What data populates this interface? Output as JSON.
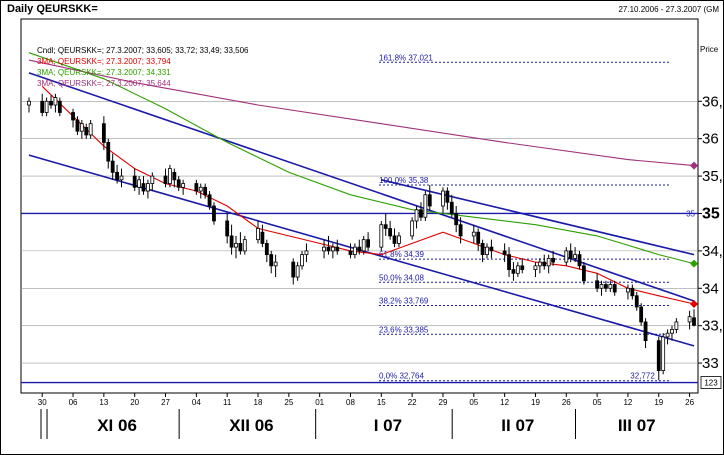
{
  "header": {
    "title": "Daily QEURSKK=",
    "date_range": "27.10.2006 - 27.3.2007 (GM"
  },
  "legend": {
    "candle": "Cndl; QEURSKK=; 27.3.2007; 33,605; 33,72; 33,49; 33,506",
    "ma3": "3MA; QEURSKK=; 27.3.2007; 33,794",
    "ma3b": "3MA; QEURSKK=; 27.3.2007; 34,331",
    "ma3c": "3MA; QEURSKK=; 27.3.2007; 35,644",
    "price_label": "Price"
  },
  "colors": {
    "ma3": "#e00000",
    "ma3b": "#2ea000",
    "ma3c": "#a0307a",
    "channel": "#1a1aa8",
    "fib": "#1a1aa8",
    "candle": "#000000"
  },
  "chart_data": {
    "type": "candlestick",
    "symbol": "QEURSKK=",
    "interval": "Daily",
    "x_start": "2006-10-27",
    "x_end": "2007-03-27",
    "ylim": [
      32.6,
      37.6
    ],
    "y_ticks": [
      {
        "value": 33.0,
        "label": "33"
      },
      {
        "value": 33.5,
        "label": "33,"
      },
      {
        "value": 34.0,
        "label": "34"
      },
      {
        "value": 34.5,
        "label": "34,"
      },
      {
        "value": 35.0,
        "label": "35",
        "bold": true
      },
      {
        "value": 35.5,
        "label": "35,"
      },
      {
        "value": 36.0,
        "label": "36"
      },
      {
        "value": 36.5,
        "label": "36,"
      }
    ],
    "price_box": "123",
    "day_ticks": [
      {
        "date": "2006-10-30",
        "label": "30"
      },
      {
        "date": "2006-11-06",
        "label": "06"
      },
      {
        "date": "2006-11-13",
        "label": "13"
      },
      {
        "date": "2006-11-20",
        "label": "20"
      },
      {
        "date": "2006-11-27",
        "label": "27"
      },
      {
        "date": "2006-12-04",
        "label": "04"
      },
      {
        "date": "2006-12-11",
        "label": "11"
      },
      {
        "date": "2006-12-18",
        "label": "18"
      },
      {
        "date": "2006-12-25",
        "label": "25"
      },
      {
        "date": "2007-01-01",
        "label": "01"
      },
      {
        "date": "2007-01-08",
        "label": "08"
      },
      {
        "date": "2007-01-15",
        "label": "15"
      },
      {
        "date": "2007-01-22",
        "label": "22"
      },
      {
        "date": "2007-01-29",
        "label": "29"
      },
      {
        "date": "2007-02-05",
        "label": "05"
      },
      {
        "date": "2007-02-12",
        "label": "12"
      },
      {
        "date": "2007-02-19",
        "label": "19"
      },
      {
        "date": "2007-02-26",
        "label": "26"
      },
      {
        "date": "2007-03-05",
        "label": "05"
      },
      {
        "date": "2007-03-12",
        "label": "12"
      },
      {
        "date": "2007-03-19",
        "label": "19"
      },
      {
        "date": "2007-03-26",
        "label": "26"
      }
    ],
    "month_labels": [
      {
        "start": "2006-11-01",
        "end": "2006-12-01",
        "label": "XI 06"
      },
      {
        "start": "2006-12-01",
        "end": "2007-01-01",
        "label": "XII 06"
      },
      {
        "start": "2007-01-01",
        "end": "2007-02-01",
        "label": "I 07"
      },
      {
        "start": "2007-02-01",
        "end": "2007-03-01",
        "label": "II 07"
      },
      {
        "start": "2007-03-01",
        "end": "2007-03-27",
        "label": "III 07"
      }
    ],
    "fibonacci": [
      {
        "level": 37.021,
        "text": "161,8% 37,021"
      },
      {
        "level": 35.38,
        "text": "100,0% 35,38"
      },
      {
        "level": 34.39,
        "text": "61,8% 34,39"
      },
      {
        "level": 34.08,
        "text": "50,0% 34,08"
      },
      {
        "level": 33.769,
        "text": "38,2% 33,769"
      },
      {
        "level": 33.385,
        "text": "23,6% 33,385"
      },
      {
        "level": 32.764,
        "text": "0,0% 32,764"
      }
    ],
    "low_label": "32,772",
    "hline_35_label": "35",
    "channel_lines": [
      {
        "from": [
          "2006-10-27",
          36.88
        ],
        "to": [
          "2007-03-27",
          33.83
        ]
      },
      {
        "from": [
          "2006-10-27",
          35.78
        ],
        "to": [
          "2007-03-27",
          33.23
        ]
      },
      {
        "from": [
          "2007-01-15",
          35.45
        ],
        "to": [
          "2007-03-27",
          34.45
        ]
      }
    ],
    "horizontal_lines": [
      35.0,
      32.74
    ],
    "series": [
      {
        "name": "3MA; QEURSKK=; 27.3.2007; 33,794",
        "color": "#e00000",
        "x": [
          "2006-10-30",
          "2006-11-06",
          "2006-11-13",
          "2006-11-20",
          "2006-11-27",
          "2006-12-04",
          "2006-12-11",
          "2006-12-18",
          "2006-12-25",
          "2007-01-01",
          "2007-01-08",
          "2007-01-15",
          "2007-01-22",
          "2007-01-29",
          "2007-02-05",
          "2007-02-12",
          "2007-02-19",
          "2007-02-26",
          "2007-03-05",
          "2007-03-12",
          "2007-03-19",
          "2007-03-27"
        ],
        "y": [
          36.7,
          36.3,
          35.9,
          35.6,
          35.4,
          35.3,
          35.1,
          34.8,
          34.7,
          34.6,
          34.5,
          34.45,
          34.6,
          34.75,
          34.6,
          34.45,
          34.35,
          34.3,
          34.2,
          34.0,
          33.9,
          33.79
        ]
      },
      {
        "name": "3MA; QEURSKK=; 27.3.2007; 34,331",
        "color": "#2ea000",
        "x": [
          "2006-10-27",
          "2006-11-13",
          "2006-11-27",
          "2006-12-11",
          "2006-12-25",
          "2007-01-08",
          "2007-01-22",
          "2007-02-05",
          "2007-02-19",
          "2007-03-05",
          "2007-03-19",
          "2007-03-27"
        ],
        "y": [
          37.15,
          36.8,
          36.4,
          35.95,
          35.55,
          35.25,
          35.05,
          34.95,
          34.85,
          34.7,
          34.45,
          34.33
        ]
      },
      {
        "name": "3MA; QEURSKK=; 27.3.2007; 35,644",
        "color": "#a0307a",
        "x": [
          "2006-10-27",
          "2006-11-20",
          "2006-12-18",
          "2007-01-15",
          "2007-02-12",
          "2007-03-12",
          "2007-03-27"
        ],
        "y": [
          37.05,
          36.75,
          36.45,
          36.2,
          35.95,
          35.72,
          35.64
        ]
      }
    ],
    "candles": [
      {
        "d": "2006-10-27",
        "o": 36.45,
        "h": 36.55,
        "l": 36.35,
        "c": 36.5
      },
      {
        "d": "2006-10-30",
        "o": 36.5,
        "h": 36.6,
        "l": 36.3,
        "c": 36.35
      },
      {
        "d": "2006-10-31",
        "o": 36.35,
        "h": 36.55,
        "l": 36.3,
        "c": 36.5
      },
      {
        "d": "2006-11-01",
        "o": 36.5,
        "h": 36.58,
        "l": 36.4,
        "c": 36.45
      },
      {
        "d": "2006-11-02",
        "o": 36.45,
        "h": 36.6,
        "l": 36.35,
        "c": 36.55
      },
      {
        "d": "2006-11-03",
        "o": 36.5,
        "h": 36.55,
        "l": 36.3,
        "c": 36.35
      },
      {
        "d": "2006-11-06",
        "o": 36.35,
        "h": 36.4,
        "l": 36.15,
        "c": 36.25
      },
      {
        "d": "2006-11-07",
        "o": 36.25,
        "h": 36.3,
        "l": 36.05,
        "c": 36.1
      },
      {
        "d": "2006-11-08",
        "o": 36.1,
        "h": 36.25,
        "l": 36.0,
        "c": 36.2
      },
      {
        "d": "2006-11-09",
        "o": 36.15,
        "h": 36.2,
        "l": 36.0,
        "c": 36.05
      },
      {
        "d": "2006-11-10",
        "o": 36.05,
        "h": 36.25,
        "l": 36.0,
        "c": 36.2
      },
      {
        "d": "2006-11-13",
        "o": 36.2,
        "h": 36.3,
        "l": 35.85,
        "c": 35.95
      },
      {
        "d": "2006-11-14",
        "o": 35.95,
        "h": 36.0,
        "l": 35.6,
        "c": 35.7
      },
      {
        "d": "2006-11-15",
        "o": 35.7,
        "h": 35.8,
        "l": 35.45,
        "c": 35.55
      },
      {
        "d": "2006-11-16",
        "o": 35.55,
        "h": 35.65,
        "l": 35.4,
        "c": 35.45
      },
      {
        "d": "2006-11-17",
        "o": 35.45,
        "h": 35.6,
        "l": 35.35,
        "c": 35.5
      },
      {
        "d": "2006-11-20",
        "o": 35.5,
        "h": 35.6,
        "l": 35.3,
        "c": 35.35
      },
      {
        "d": "2006-11-21",
        "o": 35.35,
        "h": 35.5,
        "l": 35.25,
        "c": 35.45
      },
      {
        "d": "2006-11-22",
        "o": 35.4,
        "h": 35.5,
        "l": 35.25,
        "c": 35.3
      },
      {
        "d": "2006-11-23",
        "o": 35.3,
        "h": 35.45,
        "l": 35.2,
        "c": 35.4
      },
      {
        "d": "2006-11-24",
        "o": 35.4,
        "h": 35.55,
        "l": 35.3,
        "c": 35.5
      },
      {
        "d": "2006-11-27",
        "o": 35.5,
        "h": 35.6,
        "l": 35.35,
        "c": 35.4
      },
      {
        "d": "2006-11-28",
        "o": 35.4,
        "h": 35.65,
        "l": 35.35,
        "c": 35.6
      },
      {
        "d": "2006-11-29",
        "o": 35.55,
        "h": 35.6,
        "l": 35.35,
        "c": 35.45
      },
      {
        "d": "2006-11-30",
        "o": 35.45,
        "h": 35.5,
        "l": 35.3,
        "c": 35.35
      },
      {
        "d": "2006-12-01",
        "o": 35.35,
        "h": 35.45,
        "l": 35.25,
        "c": 35.4
      },
      {
        "d": "2006-12-04",
        "o": 35.4,
        "h": 35.45,
        "l": 35.25,
        "c": 35.3
      },
      {
        "d": "2006-12-05",
        "o": 35.3,
        "h": 35.4,
        "l": 35.2,
        "c": 35.35
      },
      {
        "d": "2006-12-06",
        "o": 35.35,
        "h": 35.4,
        "l": 35.2,
        "c": 35.25
      },
      {
        "d": "2006-12-07",
        "o": 35.25,
        "h": 35.3,
        "l": 35.05,
        "c": 35.1
      },
      {
        "d": "2006-12-08",
        "o": 35.1,
        "h": 35.15,
        "l": 34.85,
        "c": 34.9
      },
      {
        "d": "2006-12-11",
        "o": 34.9,
        "h": 35.0,
        "l": 34.6,
        "c": 34.7
      },
      {
        "d": "2006-12-12",
        "o": 34.7,
        "h": 34.85,
        "l": 34.45,
        "c": 34.55
      },
      {
        "d": "2006-12-13",
        "o": 34.55,
        "h": 34.7,
        "l": 34.4,
        "c": 34.6
      },
      {
        "d": "2006-12-14",
        "o": 34.6,
        "h": 34.75,
        "l": 34.45,
        "c": 34.5
      },
      {
        "d": "2006-12-15",
        "o": 34.5,
        "h": 34.7,
        "l": 34.45,
        "c": 34.65
      },
      {
        "d": "2006-12-18",
        "o": 34.65,
        "h": 34.9,
        "l": 34.6,
        "c": 34.8
      },
      {
        "d": "2006-12-19",
        "o": 34.75,
        "h": 34.85,
        "l": 34.55,
        "c": 34.6
      },
      {
        "d": "2006-12-20",
        "o": 34.6,
        "h": 34.65,
        "l": 34.35,
        "c": 34.45
      },
      {
        "d": "2006-12-21",
        "o": 34.45,
        "h": 34.5,
        "l": 34.2,
        "c": 34.3
      },
      {
        "d": "2006-12-22",
        "o": 34.3,
        "h": 34.45,
        "l": 34.15,
        "c": 34.35
      },
      {
        "d": "2006-12-26",
        "o": 34.35,
        "h": 34.4,
        "l": 34.05,
        "c": 34.15
      },
      {
        "d": "2006-12-27",
        "o": 34.15,
        "h": 34.35,
        "l": 34.1,
        "c": 34.3
      },
      {
        "d": "2006-12-28",
        "o": 34.3,
        "h": 34.5,
        "l": 34.25,
        "c": 34.45
      },
      {
        "d": "2006-12-29",
        "o": 34.45,
        "h": 34.6,
        "l": 34.35,
        "c": 34.5
      },
      {
        "d": "2007-01-02",
        "o": 34.5,
        "h": 34.65,
        "l": 34.4,
        "c": 34.55
      },
      {
        "d": "2007-01-03",
        "o": 34.55,
        "h": 34.7,
        "l": 34.45,
        "c": 34.5
      },
      {
        "d": "2007-01-04",
        "o": 34.5,
        "h": 34.6,
        "l": 34.4,
        "c": 34.55
      },
      {
        "d": "2007-01-05",
        "o": 34.55,
        "h": 34.65,
        "l": 34.45,
        "c": 34.5
      },
      {
        "d": "2007-01-08",
        "o": 34.5,
        "h": 34.6,
        "l": 34.4,
        "c": 34.45
      },
      {
        "d": "2007-01-09",
        "o": 34.45,
        "h": 34.6,
        "l": 34.4,
        "c": 34.55
      },
      {
        "d": "2007-01-10",
        "o": 34.55,
        "h": 34.65,
        "l": 34.45,
        "c": 34.5
      },
      {
        "d": "2007-01-11",
        "o": 34.5,
        "h": 34.7,
        "l": 34.45,
        "c": 34.65
      },
      {
        "d": "2007-01-12",
        "o": 34.65,
        "h": 34.75,
        "l": 34.5,
        "c": 34.55
      },
      {
        "d": "2007-01-15",
        "o": 34.55,
        "h": 34.9,
        "l": 34.5,
        "c": 34.85
      },
      {
        "d": "2007-01-16",
        "o": 34.85,
        "h": 35.0,
        "l": 34.7,
        "c": 34.8
      },
      {
        "d": "2007-01-17",
        "o": 34.8,
        "h": 34.9,
        "l": 34.65,
        "c": 34.7
      },
      {
        "d": "2007-01-18",
        "o": 34.7,
        "h": 34.8,
        "l": 34.55,
        "c": 34.6
      },
      {
        "d": "2007-01-19",
        "o": 34.6,
        "h": 34.75,
        "l": 34.55,
        "c": 34.7
      },
      {
        "d": "2007-01-22",
        "o": 34.7,
        "h": 34.95,
        "l": 34.65,
        "c": 34.9
      },
      {
        "d": "2007-01-23",
        "o": 34.9,
        "h": 35.1,
        "l": 34.8,
        "c": 35.05
      },
      {
        "d": "2007-01-24",
        "o": 35.05,
        "h": 35.15,
        "l": 34.9,
        "c": 34.95
      },
      {
        "d": "2007-01-25",
        "o": 34.95,
        "h": 35.3,
        "l": 34.9,
        "c": 35.25
      },
      {
        "d": "2007-01-26",
        "o": 35.25,
        "h": 35.38,
        "l": 35.05,
        "c": 35.1
      },
      {
        "d": "2007-01-29",
        "o": 35.1,
        "h": 35.35,
        "l": 35.0,
        "c": 35.3
      },
      {
        "d": "2007-01-30",
        "o": 35.3,
        "h": 35.35,
        "l": 35.05,
        "c": 35.15
      },
      {
        "d": "2007-01-31",
        "o": 35.15,
        "h": 35.25,
        "l": 34.95,
        "c": 35.0
      },
      {
        "d": "2007-02-01",
        "o": 35.0,
        "h": 35.1,
        "l": 34.75,
        "c": 34.85
      },
      {
        "d": "2007-02-02",
        "o": 34.85,
        "h": 34.95,
        "l": 34.6,
        "c": 34.7
      },
      {
        "d": "2007-02-05",
        "o": 34.7,
        "h": 34.85,
        "l": 34.6,
        "c": 34.75
      },
      {
        "d": "2007-02-06",
        "o": 34.75,
        "h": 34.8,
        "l": 34.5,
        "c": 34.6
      },
      {
        "d": "2007-02-07",
        "o": 34.6,
        "h": 34.65,
        "l": 34.35,
        "c": 34.45
      },
      {
        "d": "2007-02-08",
        "o": 34.45,
        "h": 34.6,
        "l": 34.4,
        "c": 34.55
      },
      {
        "d": "2007-02-09",
        "o": 34.55,
        "h": 34.65,
        "l": 34.4,
        "c": 34.5
      },
      {
        "d": "2007-02-12",
        "o": 34.5,
        "h": 34.6,
        "l": 34.35,
        "c": 34.45
      },
      {
        "d": "2007-02-13",
        "o": 34.45,
        "h": 34.55,
        "l": 34.15,
        "c": 34.25
      },
      {
        "d": "2007-02-14",
        "o": 34.25,
        "h": 34.35,
        "l": 34.1,
        "c": 34.2
      },
      {
        "d": "2007-02-15",
        "o": 34.2,
        "h": 34.35,
        "l": 34.15,
        "c": 34.3
      },
      {
        "d": "2007-02-16",
        "o": 34.3,
        "h": 34.4,
        "l": 34.2,
        "c": 34.25
      },
      {
        "d": "2007-02-19",
        "o": 34.25,
        "h": 34.35,
        "l": 34.15,
        "c": 34.3
      },
      {
        "d": "2007-02-20",
        "o": 34.3,
        "h": 34.4,
        "l": 34.2,
        "c": 34.35
      },
      {
        "d": "2007-02-21",
        "o": 34.35,
        "h": 34.45,
        "l": 34.25,
        "c": 34.3
      },
      {
        "d": "2007-02-22",
        "o": 34.3,
        "h": 34.45,
        "l": 34.2,
        "c": 34.4
      },
      {
        "d": "2007-02-23",
        "o": 34.4,
        "h": 34.5,
        "l": 34.3,
        "c": 34.35
      },
      {
        "d": "2007-02-26",
        "o": 34.35,
        "h": 34.55,
        "l": 34.3,
        "c": 34.5
      },
      {
        "d": "2007-02-27",
        "o": 34.5,
        "h": 34.6,
        "l": 34.35,
        "c": 34.4
      },
      {
        "d": "2007-02-28",
        "o": 34.4,
        "h": 34.55,
        "l": 34.35,
        "c": 34.45
      },
      {
        "d": "2007-03-01",
        "o": 34.45,
        "h": 34.5,
        "l": 34.25,
        "c": 34.3
      },
      {
        "d": "2007-03-02",
        "o": 34.3,
        "h": 34.35,
        "l": 34.05,
        "c": 34.1
      },
      {
        "d": "2007-03-05",
        "o": 34.1,
        "h": 34.2,
        "l": 33.95,
        "c": 34.0
      },
      {
        "d": "2007-03-06",
        "o": 34.0,
        "h": 34.1,
        "l": 33.9,
        "c": 34.05
      },
      {
        "d": "2007-03-07",
        "o": 34.05,
        "h": 34.1,
        "l": 33.95,
        "c": 34.0
      },
      {
        "d": "2007-03-08",
        "o": 34.0,
        "h": 34.1,
        "l": 33.95,
        "c": 34.05
      },
      {
        "d": "2007-03-09",
        "o": 34.05,
        "h": 34.1,
        "l": 33.9,
        "c": 33.95
      },
      {
        "d": "2007-03-12",
        "o": 33.95,
        "h": 34.05,
        "l": 33.85,
        "c": 34.0
      },
      {
        "d": "2007-03-13",
        "o": 34.0,
        "h": 34.05,
        "l": 33.85,
        "c": 33.9
      },
      {
        "d": "2007-03-14",
        "o": 33.9,
        "h": 33.95,
        "l": 33.7,
        "c": 33.75
      },
      {
        "d": "2007-03-15",
        "o": 33.75,
        "h": 33.8,
        "l": 33.5,
        "c": 33.55
      },
      {
        "d": "2007-03-16",
        "o": 33.55,
        "h": 33.6,
        "l": 33.2,
        "c": 33.3
      },
      {
        "d": "2007-03-19",
        "o": 33.3,
        "h": 33.35,
        "l": 32.77,
        "c": 32.9
      },
      {
        "d": "2007-03-20",
        "o": 32.9,
        "h": 33.4,
        "l": 32.85,
        "c": 33.35
      },
      {
        "d": "2007-03-21",
        "o": 33.35,
        "h": 33.45,
        "l": 33.25,
        "c": 33.4
      },
      {
        "d": "2007-03-22",
        "o": 33.4,
        "h": 33.5,
        "l": 33.3,
        "c": 33.45
      },
      {
        "d": "2007-03-23",
        "o": 33.45,
        "h": 33.6,
        "l": 33.4,
        "c": 33.55
      },
      {
        "d": "2007-03-26",
        "o": 33.55,
        "h": 33.7,
        "l": 33.45,
        "c": 33.62
      },
      {
        "d": "2007-03-27",
        "o": 33.605,
        "h": 33.72,
        "l": 33.49,
        "c": 33.506
      }
    ]
  }
}
